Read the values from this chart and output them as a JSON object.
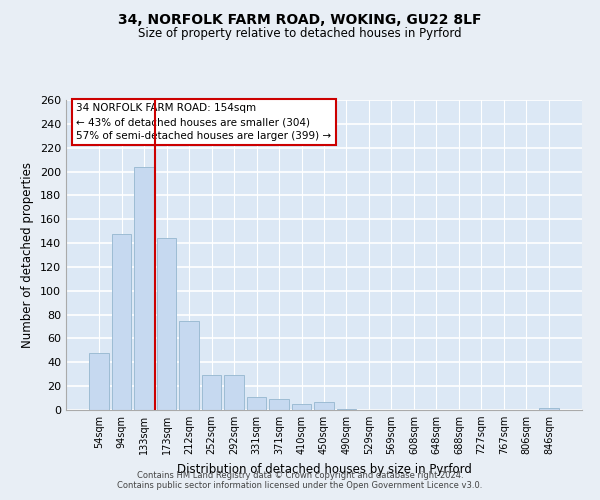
{
  "title": "34, NORFOLK FARM ROAD, WOKING, GU22 8LF",
  "subtitle": "Size of property relative to detached houses in Pyrford",
  "xlabel": "Distribution of detached houses by size in Pyrford",
  "ylabel": "Number of detached properties",
  "bar_labels": [
    "54sqm",
    "94sqm",
    "133sqm",
    "173sqm",
    "212sqm",
    "252sqm",
    "292sqm",
    "331sqm",
    "371sqm",
    "410sqm",
    "450sqm",
    "490sqm",
    "529sqm",
    "569sqm",
    "608sqm",
    "648sqm",
    "688sqm",
    "727sqm",
    "767sqm",
    "806sqm",
    "846sqm"
  ],
  "bar_values": [
    48,
    148,
    204,
    144,
    75,
    29,
    29,
    11,
    9,
    5,
    7,
    1,
    0,
    0,
    0,
    0,
    0,
    0,
    0,
    0,
    2
  ],
  "bar_color": "#c6d9f0",
  "bar_edge_color": "#9dbcd4",
  "vline_x": 2.5,
  "vline_color": "#cc0000",
  "ylim": [
    0,
    260
  ],
  "yticks": [
    0,
    20,
    40,
    60,
    80,
    100,
    120,
    140,
    160,
    180,
    200,
    220,
    240,
    260
  ],
  "annotation_title": "34 NORFOLK FARM ROAD: 154sqm",
  "annotation_line1": "← 43% of detached houses are smaller (304)",
  "annotation_line2": "57% of semi-detached houses are larger (399) →",
  "footer_line1": "Contains HM Land Registry data © Crown copyright and database right 2024.",
  "footer_line2": "Contains public sector information licensed under the Open Government Licence v3.0.",
  "fig_bg_color": "#e8eef5",
  "plot_bg_color": "#dce8f5"
}
